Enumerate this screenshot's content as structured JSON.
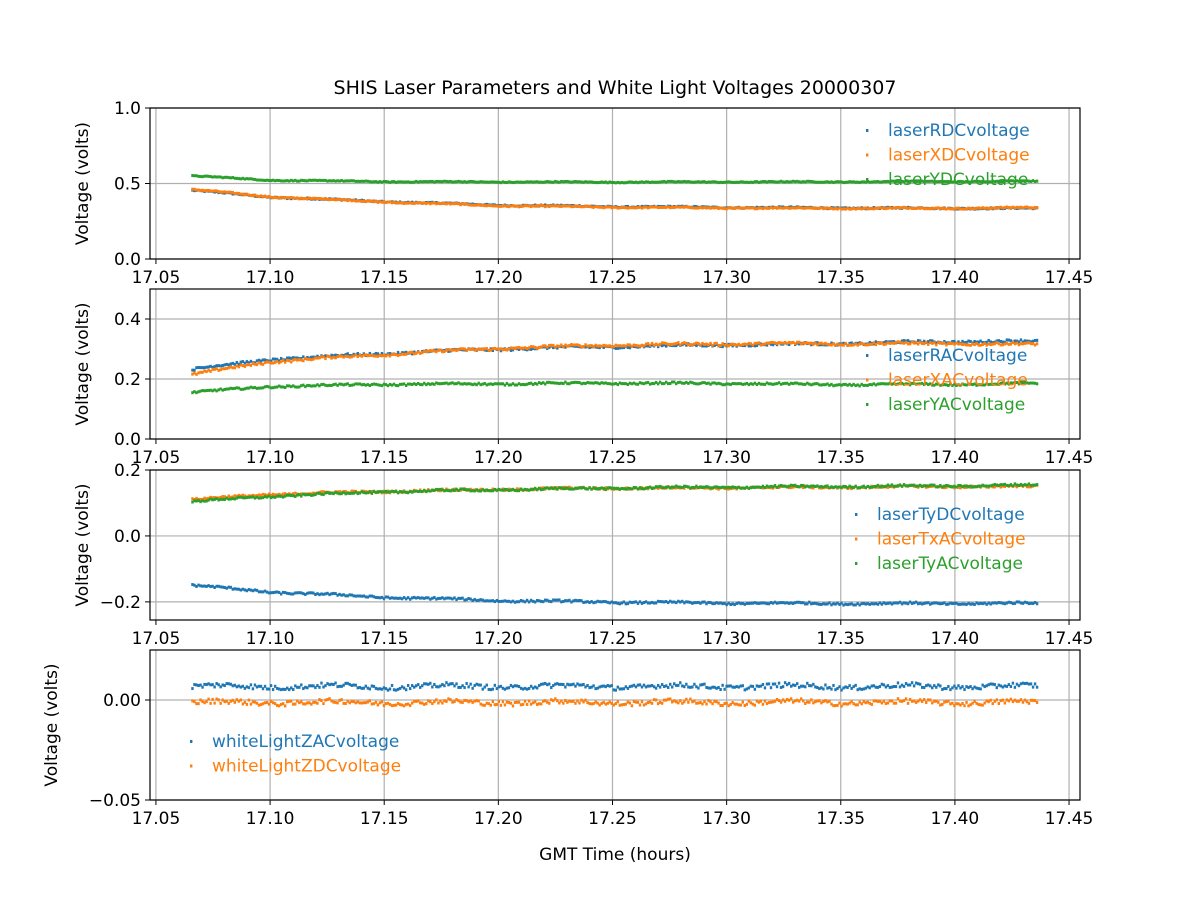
{
  "chart_data": {
    "type": "scatter",
    "title": "SHIS Laser Parameters and White Light Voltages 20000307",
    "xlabel": "GMT Time (hours)",
    "xlim": [
      17.0474,
      17.4548
    ],
    "xticks": [
      17.05,
      17.1,
      17.15,
      17.2,
      17.25,
      17.3,
      17.35,
      17.4,
      17.45
    ],
    "xtick_labels": [
      "17.05",
      "17.10",
      "17.15",
      "17.20",
      "17.25",
      "17.30",
      "17.35",
      "17.40",
      "17.45"
    ],
    "x_range": [
      17.066,
      17.436
    ],
    "grid": true,
    "colors": [
      "#1f77b4",
      "#ff7f0e",
      "#2ca02c"
    ],
    "panels": [
      {
        "ylabel": "Voltage (volts)",
        "ylim": [
          0,
          1.0
        ],
        "yticks": [
          0,
          0.5,
          1.0
        ],
        "ytick_labels": [
          "0.0",
          "0.5",
          "1.0"
        ],
        "legend_loc": "upper right",
        "series": [
          {
            "name": "laserRDCvoltage",
            "noise": 0.004,
            "x": [
              17.066,
              17.1,
              17.15,
              17.2,
              17.25,
              17.3,
              17.35,
              17.4,
              17.436
            ],
            "y": [
              0.455,
              0.41,
              0.38,
              0.357,
              0.347,
              0.342,
              0.338,
              0.336,
              0.335
            ]
          },
          {
            "name": "laserXDCvoltage",
            "noise": 0.004,
            "x": [
              17.066,
              17.1,
              17.15,
              17.2,
              17.25,
              17.3,
              17.35,
              17.4,
              17.436
            ],
            "y": [
              0.46,
              0.412,
              0.378,
              0.353,
              0.343,
              0.338,
              0.336,
              0.336,
              0.34
            ]
          },
          {
            "name": "laserYDCvoltage",
            "noise": 0.003,
            "x": [
              17.066,
              17.1,
              17.15,
              17.2,
              17.25,
              17.3,
              17.35,
              17.4,
              17.436
            ],
            "y": [
              0.55,
              0.522,
              0.512,
              0.51,
              0.509,
              0.51,
              0.511,
              0.513,
              0.515
            ]
          }
        ]
      },
      {
        "ylabel": "Voltage (volts)",
        "ylim": [
          0,
          0.5
        ],
        "yticks": [
          0,
          0.2,
          0.4
        ],
        "ytick_labels": [
          "0.0",
          "0.2",
          "0.4"
        ],
        "legend_loc": "center right",
        "series": [
          {
            "name": "laserRACvoltage",
            "noise": 0.004,
            "x": [
              17.066,
              17.1,
              17.15,
              17.2,
              17.25,
              17.3,
              17.35,
              17.4,
              17.436
            ],
            "y": [
              0.232,
              0.265,
              0.285,
              0.3,
              0.308,
              0.314,
              0.318,
              0.325,
              0.325
            ]
          },
          {
            "name": "laserXACvoltage",
            "noise": 0.004,
            "x": [
              17.066,
              17.1,
              17.15,
              17.2,
              17.25,
              17.3,
              17.35,
              17.4,
              17.436
            ],
            "y": [
              0.215,
              0.258,
              0.282,
              0.302,
              0.313,
              0.317,
              0.318,
              0.318,
              0.315
            ]
          },
          {
            "name": "laserYACvoltage",
            "noise": 0.003,
            "x": [
              17.066,
              17.1,
              17.15,
              17.2,
              17.25,
              17.3,
              17.35,
              17.4,
              17.436
            ],
            "y": [
              0.155,
              0.175,
              0.182,
              0.184,
              0.186,
              0.185,
              0.181,
              0.182,
              0.185
            ]
          }
        ]
      },
      {
        "ylabel": "Voltage (volts)",
        "ylim": [
          -0.255,
          0.2
        ],
        "yticks": [
          -0.2,
          0.0,
          0.2
        ],
        "ytick_labels": [
          "−0.2",
          "0.0",
          "0.2"
        ],
        "legend_loc": "center right",
        "series": [
          {
            "name": "laserTyDCvoltage",
            "noise": 0.003,
            "x": [
              17.066,
              17.1,
              17.15,
              17.2,
              17.25,
              17.3,
              17.35,
              17.4,
              17.436
            ],
            "y": [
              -0.15,
              -0.17,
              -0.186,
              -0.196,
              -0.201,
              -0.204,
              -0.205,
              -0.205,
              -0.204
            ]
          },
          {
            "name": "laserTxACvoltage",
            "noise": 0.003,
            "x": [
              17.066,
              17.1,
              17.15,
              17.2,
              17.25,
              17.3,
              17.35,
              17.4,
              17.436
            ],
            "y": [
              0.11,
              0.126,
              0.135,
              0.141,
              0.145,
              0.146,
              0.148,
              0.15,
              0.15
            ]
          },
          {
            "name": "laserTyACvoltage",
            "noise": 0.003,
            "x": [
              17.066,
              17.1,
              17.15,
              17.2,
              17.25,
              17.3,
              17.35,
              17.4,
              17.436
            ],
            "y": [
              0.104,
              0.12,
              0.134,
              0.14,
              0.145,
              0.148,
              0.15,
              0.152,
              0.154
            ]
          }
        ]
      },
      {
        "ylabel": "Voltage (volts)",
        "ylim": [
          -0.05,
          0.025
        ],
        "yticks": [
          -0.05,
          0.0
        ],
        "ytick_labels": [
          "−0.05",
          "0.00"
        ],
        "legend_loc": "center left",
        "series": [
          {
            "name": "whiteLightZACvoltage",
            "noise": 0.0012,
            "x": [
              17.066,
              17.436
            ],
            "y": [
              0.0068,
              0.0068
            ]
          },
          {
            "name": "whiteLightZDCvoltage",
            "noise": 0.0012,
            "x": [
              17.066,
              17.436
            ],
            "y": [
              -0.0012,
              -0.0012
            ]
          }
        ]
      }
    ]
  }
}
